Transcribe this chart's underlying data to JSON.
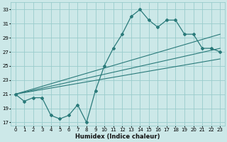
{
  "xlabel": "Humidex (Indice chaleur)",
  "ylabel": "",
  "bg_color": "#cce8e8",
  "grid_color": "#99cccc",
  "line_color": "#2a7a7a",
  "x_data": [
    0,
    1,
    2,
    3,
    4,
    5,
    6,
    7,
    8,
    9,
    10,
    11,
    12,
    13,
    14,
    15,
    16,
    17,
    18,
    19,
    20,
    21,
    22,
    23
  ],
  "y_main": [
    21,
    20,
    20.5,
    20.5,
    18,
    17.5,
    18,
    19.5,
    17,
    21.5,
    25,
    27.5,
    29.5,
    32,
    33,
    31.5,
    30.5,
    31.5,
    31.5,
    29.5,
    29.5,
    27.5,
    27.5,
    27
  ],
  "trend1_x": [
    0,
    23
  ],
  "trend1_y": [
    21,
    29.5
  ],
  "trend2_x": [
    0,
    23
  ],
  "trend2_y": [
    21,
    27.5
  ],
  "trend3_x": [
    0,
    23
  ],
  "trend3_y": [
    21,
    26.0
  ],
  "ylim": [
    16.5,
    34
  ],
  "yticks": [
    17,
    19,
    21,
    23,
    25,
    27,
    29,
    31,
    33
  ],
  "xlim": [
    -0.5,
    23.5
  ],
  "xticks": [
    0,
    1,
    2,
    3,
    4,
    5,
    6,
    7,
    8,
    9,
    10,
    11,
    12,
    13,
    14,
    15,
    16,
    17,
    18,
    19,
    20,
    21,
    22,
    23
  ],
  "tick_fontsize": 5.0,
  "xlabel_fontsize": 6.0
}
